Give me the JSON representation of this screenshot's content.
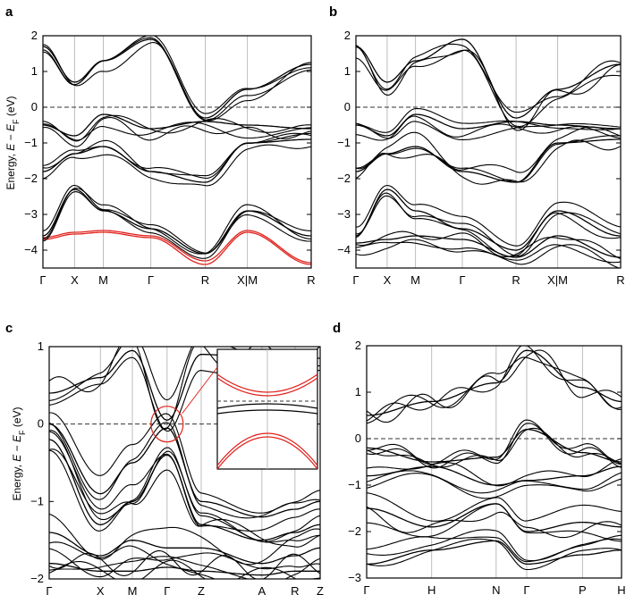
{
  "panels": [
    {
      "id": "a",
      "label": "a",
      "ylabel_parts": [
        "Energy, ",
        "E",
        " − ",
        "E",
        "F",
        " (eV)"
      ],
      "ylim": [
        -4.5,
        2
      ],
      "yticks": [
        -4,
        -3,
        -2,
        -1,
        0,
        1,
        2
      ],
      "kpoint_labels": [
        "Γ",
        "X",
        "M",
        "Γ",
        "R",
        "X|M",
        "R"
      ],
      "kpoint_pos": [
        0,
        0.118,
        0.225,
        0.402,
        0.605,
        0.762,
        1.0
      ],
      "fermi_level": 0,
      "red_highlight_band_energy_range": [
        -4.45,
        -3.45
      ],
      "line_color": "#000000",
      "highlight_color": "#e0201b"
    },
    {
      "id": "b",
      "label": "b",
      "ylabel_parts": [],
      "ylim": [
        -4.5,
        2
      ],
      "yticks": [
        -4,
        -3,
        -2,
        -1,
        0,
        1,
        2
      ],
      "kpoint_labels": [
        "Γ",
        "X",
        "M",
        "Γ",
        "R",
        "X|M",
        "R"
      ],
      "kpoint_pos": [
        0,
        0.118,
        0.225,
        0.402,
        0.605,
        0.762,
        1.0
      ],
      "fermi_level": 0,
      "line_color": "#000000"
    },
    {
      "id": "c",
      "label": "c",
      "ylabel_parts": [
        "Energy, ",
        "E",
        " − ",
        "E",
        "F",
        " (eV)"
      ],
      "ylim": [
        -2,
        1
      ],
      "yticks": [
        -2,
        -1,
        0,
        1
      ],
      "kpoint_labels": [
        "Γ",
        "X",
        "M",
        "Γ",
        "Z",
        "A",
        "R",
        "Z"
      ],
      "kpoint_pos": [
        0,
        0.189,
        0.307,
        0.435,
        0.561,
        0.785,
        0.907,
        1.0
      ],
      "fermi_level": 0,
      "inset": "zoom near Γ around the Fermi level",
      "highlight_color": "#e0201b"
    },
    {
      "id": "d",
      "label": "d",
      "ylabel_parts": [],
      "ylim": [
        -3,
        2
      ],
      "yticks": [
        -3,
        -2,
        -1,
        0,
        1,
        2
      ],
      "kpoint_labels": [
        "Γ",
        "H",
        "N",
        "Γ",
        "P",
        "H"
      ],
      "kpoint_pos": [
        0,
        0.255,
        0.508,
        0.628,
        0.847,
        1.0
      ],
      "fermi_level": 0
    }
  ],
  "chart_data": [
    {
      "type": "line",
      "panel": "a",
      "xlabel": "",
      "x_ticks": [
        "Γ",
        "X",
        "M",
        "Γ",
        "R",
        "X|M",
        "R"
      ],
      "ylabel": "Energy, E − EF (eV)",
      "ylim": [
        -4.5,
        2
      ],
      "grid": "vertical lines at high-symmetry points",
      "fermi_level_dashed": 0,
      "series_kind": "electronic band structure (approx.)",
      "series": [
        {
          "x": [
            0,
            0.118,
            0.225,
            0.402,
            0.605,
            0.762,
            1.0
          ],
          "values": [
            -3.7,
            -3.55,
            -3.5,
            -3.65,
            -4.4,
            -3.5,
            -4.4
          ],
          "color": "#e0201b"
        },
        {
          "x": [
            0,
            0.118,
            0.225,
            0.402,
            0.605,
            0.762,
            1.0
          ],
          "values": [
            -3.65,
            -3.5,
            -3.45,
            -3.6,
            -4.3,
            -3.45,
            -4.35
          ],
          "color": "#e0201b"
        },
        {
          "x": [
            0,
            0.118,
            0.225,
            0.402,
            0.605,
            0.762,
            1.0
          ],
          "values": [
            -3.6,
            -2.3,
            -2.9,
            -3.4,
            -4.1,
            -2.9,
            -3.6
          ]
        },
        {
          "x": [
            0,
            0.118,
            0.225,
            0.402,
            0.605,
            0.762,
            1.0
          ],
          "values": [
            -1.8,
            -1.3,
            -1.1,
            -1.8,
            -2.1,
            -1.0,
            -0.9
          ]
        },
        {
          "x": [
            0,
            0.118,
            0.225,
            0.402,
            0.605,
            0.762,
            1.0
          ],
          "values": [
            -0.5,
            -0.8,
            -0.2,
            -0.6,
            -0.4,
            -0.5,
            -0.6
          ]
        },
        {
          "x": [
            0,
            0.118,
            0.225,
            0.402,
            0.605,
            0.762,
            1.0
          ],
          "values": [
            1.7,
            0.7,
            1.3,
            1.9,
            -0.3,
            0.5,
            1.2
          ]
        }
      ]
    },
    {
      "type": "line",
      "panel": "b",
      "xlabel": "",
      "x_ticks": [
        "Γ",
        "X",
        "M",
        "Γ",
        "R",
        "X|M",
        "R"
      ],
      "ylim": [
        -4.5,
        2
      ],
      "fermi_level_dashed": 0,
      "series_kind": "electronic band structure (approx.)",
      "series": [
        {
          "x": [
            0,
            0.118,
            0.225,
            0.402,
            0.605,
            0.762,
            1.0
          ],
          "values": [
            -3.8,
            -3.7,
            -3.6,
            -3.7,
            -4.2,
            -3.6,
            -4.2
          ]
        },
        {
          "x": [
            0,
            0.118,
            0.225,
            0.402,
            0.605,
            0.762,
            1.0
          ],
          "values": [
            -3.6,
            -2.3,
            -2.9,
            -3.4,
            -4.0,
            -2.9,
            -3.6
          ]
        },
        {
          "x": [
            0,
            0.118,
            0.225,
            0.402,
            0.605,
            0.762,
            1.0
          ],
          "values": [
            -1.8,
            -1.3,
            -1.1,
            -1.8,
            -2.1,
            -1.0,
            -0.9
          ]
        },
        {
          "x": [
            0,
            0.118,
            0.225,
            0.402,
            0.605,
            0.762,
            1.0
          ],
          "values": [
            -0.5,
            -0.8,
            -0.2,
            -0.6,
            -0.4,
            -0.5,
            -0.6
          ]
        },
        {
          "x": [
            0,
            0.118,
            0.225,
            0.402,
            0.605,
            0.762,
            1.0
          ],
          "values": [
            1.7,
            0.7,
            1.3,
            1.9,
            -0.3,
            0.5,
            1.2
          ]
        }
      ]
    },
    {
      "type": "line",
      "panel": "c",
      "xlabel": "",
      "x_ticks": [
        "Γ",
        "X",
        "M",
        "Γ",
        "Z",
        "A",
        "R",
        "Z"
      ],
      "ylabel": "Energy, E − EF (eV)",
      "ylim": [
        -2,
        1
      ],
      "fermi_level_dashed": 0,
      "series_kind": "electronic band structure (approx.)",
      "series": [
        {
          "x": [
            0,
            0.189,
            0.307,
            0.435,
            0.561,
            0.785,
            0.907,
            1.0
          ],
          "values": [
            0.4,
            0.6,
            0.95,
            0.05,
            0.9,
            0.85,
            0.9,
            0.85
          ]
        },
        {
          "x": [
            0,
            0.189,
            0.307,
            0.435,
            0.561,
            0.785,
            0.907,
            1.0
          ],
          "values": [
            0.0,
            -0.9,
            -0.5,
            -0.05,
            -1.0,
            -1.2,
            -1.1,
            -1.0
          ]
        },
        {
          "x": [
            0,
            0.189,
            0.307,
            0.435,
            0.561,
            0.785,
            0.907,
            1.0
          ],
          "values": [
            -0.2,
            -1.3,
            -1.0,
            -0.4,
            -1.3,
            -1.5,
            -1.4,
            -1.3
          ]
        },
        {
          "x": [
            0,
            0.189,
            0.307,
            0.435,
            0.561,
            0.785,
            0.907,
            1.0
          ],
          "values": [
            -1.4,
            -1.7,
            -1.5,
            -1.6,
            -1.6,
            -1.8,
            -1.7,
            -1.6
          ]
        },
        {
          "x": [
            0,
            0.189,
            0.307,
            0.435,
            0.561,
            0.785,
            0.907,
            1.0
          ],
          "values": [
            -1.8,
            -1.9,
            -1.9,
            -1.85,
            -1.9,
            -1.95,
            -1.9,
            -1.9
          ]
        }
      ]
    },
    {
      "type": "line",
      "panel": "d",
      "xlabel": "",
      "x_ticks": [
        "Γ",
        "H",
        "N",
        "Γ",
        "P",
        "H"
      ],
      "ylim": [
        -3,
        2
      ],
      "fermi_level_dashed": 0,
      "series_kind": "electronic band structure (approx.)",
      "series": [
        {
          "x": [
            0,
            0.255,
            0.508,
            0.628,
            0.847,
            1.0
          ],
          "values": [
            0.5,
            0.8,
            1.2,
            1.9,
            1.1,
            0.8
          ]
        },
        {
          "x": [
            0,
            0.255,
            0.508,
            0.628,
            0.847,
            1.0
          ],
          "values": [
            -0.2,
            -0.5,
            -0.4,
            0.2,
            -0.3,
            -0.5
          ]
        },
        {
          "x": [
            0,
            0.255,
            0.508,
            0.628,
            0.847,
            1.0
          ],
          "values": [
            -0.8,
            -0.6,
            -1.0,
            -0.9,
            -0.8,
            -0.6
          ]
        },
        {
          "x": [
            0,
            0.255,
            0.508,
            0.628,
            0.847,
            1.0
          ],
          "values": [
            -1.5,
            -1.9,
            -1.4,
            -2.0,
            -1.8,
            -1.9
          ]
        },
        {
          "x": [
            0,
            0.255,
            0.508,
            0.628,
            0.847,
            1.0
          ],
          "values": [
            -2.7,
            -2.4,
            -2.2,
            -2.7,
            -2.5,
            -2.4
          ]
        }
      ]
    }
  ]
}
